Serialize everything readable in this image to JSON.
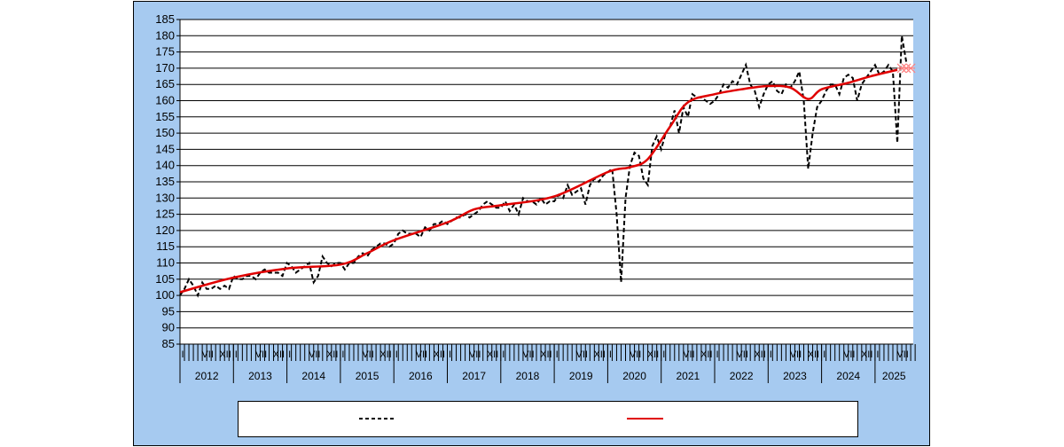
{
  "chart_data": {
    "type": "line",
    "title": "",
    "xlabel": "",
    "ylabel": "",
    "ylim": [
      85,
      185
    ],
    "yticks": [
      85,
      90,
      95,
      100,
      105,
      110,
      115,
      120,
      125,
      130,
      135,
      140,
      145,
      150,
      155,
      160,
      165,
      170,
      175,
      180,
      185
    ],
    "grid": true,
    "legend_placement": "bottom",
    "colors": {
      "background": "#a6caf0",
      "plot": "#ffffff",
      "actual": "#000000",
      "trend": "#e00000",
      "forecast": "#ff8080"
    },
    "x_start": "2012-01",
    "years": [
      "2012",
      "2013",
      "2014",
      "2015",
      "2016",
      "2017",
      "2018",
      "2019",
      "2020",
      "2021",
      "2022",
      "2023",
      "2024",
      "2025"
    ],
    "month_labels": {
      "1": "I",
      "7": "VII",
      "12": "XII"
    },
    "series": [
      {
        "style": "dashed",
        "values": [
          100,
          102,
          105,
          103,
          100,
          104,
          102,
          102,
          103,
          102,
          103,
          102,
          106,
          105,
          105,
          106,
          106,
          105,
          107,
          108,
          107,
          107,
          107,
          106,
          110,
          109,
          107,
          108,
          109,
          110,
          104,
          106,
          112,
          110,
          109,
          110,
          110,
          108,
          110,
          110,
          112,
          113,
          112,
          114,
          115,
          116,
          116,
          115,
          116,
          119,
          120,
          119,
          119,
          119,
          118,
          121,
          120,
          122,
          122,
          123,
          122,
          123,
          124,
          124,
          125,
          124,
          125,
          126,
          128,
          129,
          128,
          127,
          127,
          129,
          126,
          128,
          125,
          130,
          129,
          129,
          128,
          130,
          128,
          129,
          129,
          131,
          130,
          134,
          131,
          132,
          133,
          128,
          134,
          136,
          135,
          137,
          138,
          139,
          125,
          104,
          130,
          140,
          144,
          143,
          136,
          134,
          146,
          149,
          145,
          150,
          152,
          157,
          150,
          158,
          155,
          162,
          161,
          161,
          160,
          159,
          160,
          162,
          165,
          164,
          166,
          165,
          168,
          171,
          165,
          163,
          158,
          162,
          165,
          166,
          163,
          162,
          165,
          164,
          166,
          169,
          160,
          139,
          150,
          158,
          160,
          163,
          165,
          165,
          162,
          167,
          168,
          167,
          160,
          165,
          167,
          169,
          171,
          168,
          169,
          171,
          169,
          147,
          180,
          172
        ]
      },
      {
        "style": "solid",
        "points": [
          [
            "2012-01",
            101
          ],
          [
            "2013-01",
            105.5
          ],
          [
            "2014-01",
            108.3
          ],
          [
            "2015-01",
            109.5
          ],
          [
            "2015-07",
            113
          ],
          [
            "2016-01",
            117
          ],
          [
            "2017-01",
            122.5
          ],
          [
            "2017-07",
            126.5
          ],
          [
            "2018-01",
            127.8
          ],
          [
            "2019-01",
            130.5
          ],
          [
            "2020-01",
            138
          ],
          [
            "2020-06",
            139.5
          ],
          [
            "2020-10",
            142
          ],
          [
            "2021-03",
            152
          ],
          [
            "2021-07",
            159.5
          ],
          [
            "2022-01",
            162
          ],
          [
            "2022-07",
            163.5
          ],
          [
            "2023-01",
            164.5
          ],
          [
            "2023-06",
            164
          ],
          [
            "2023-10",
            160.5
          ],
          [
            "2024-01",
            163.5
          ],
          [
            "2024-07",
            165.5
          ],
          [
            "2024-12",
            167.5
          ],
          [
            "2025-06",
            169.5
          ]
        ]
      }
    ],
    "forecast": [
      [
        "2025-07",
        170
      ],
      [
        "2025-08",
        170
      ],
      [
        "2025-09",
        170
      ]
    ],
    "legend": [
      {
        "name": "",
        "style": "dashed",
        "color": "#000000"
      },
      {
        "name": "",
        "style": "solid",
        "color": "#e00000"
      }
    ]
  }
}
